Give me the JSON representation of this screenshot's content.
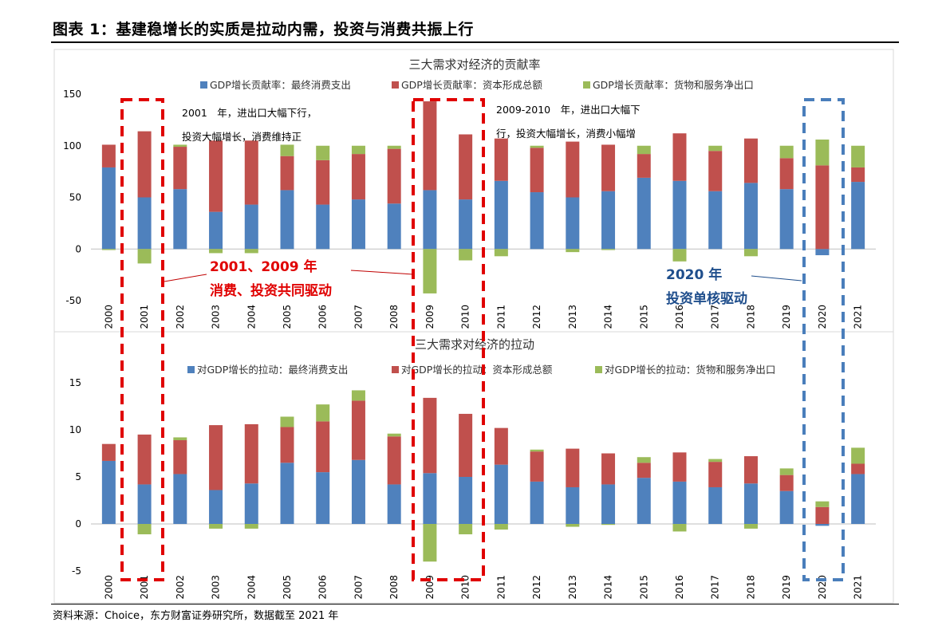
{
  "figure": {
    "title": "图表 1：基建稳增长的实质是拉动内需，投资与消费共振上行",
    "source": "资料来源：Choice，东方财富证券研究所，数据截至 2021 年"
  },
  "colors": {
    "consumption": "#4f81bd",
    "investment": "#c0504d",
    "net_exports": "#9bbb59",
    "highlight_red": "#e00000",
    "highlight_blue": "#4a7ebb"
  },
  "chart_data": [
    {
      "type": "bar",
      "stacked": true,
      "title": "三大需求对经济的贡献率",
      "categories": [
        "2000",
        "2001",
        "2002",
        "2003",
        "2004",
        "2005",
        "2006",
        "2007",
        "2008",
        "2009",
        "2010",
        "2011",
        "2012",
        "2013",
        "2014",
        "2015",
        "2016",
        "2017",
        "2018",
        "2019",
        "2020",
        "2021"
      ],
      "ylim": [
        -50,
        150
      ],
      "yticks": [
        -50,
        0,
        50,
        100,
        150
      ],
      "grid": false,
      "legend_position": "top",
      "series": [
        {
          "name": "GDP增长贡献率：最终消费支出",
          "values": [
            79,
            50,
            58,
            36,
            43,
            57,
            43,
            48,
            44,
            57,
            48,
            66,
            55,
            50,
            56,
            69,
            66,
            56,
            64,
            58,
            -6,
            65
          ]
        },
        {
          "name": "GDP增长贡献率：资本形成总额",
          "values": [
            22,
            64,
            41,
            69,
            62,
            33,
            43,
            44,
            53,
            86,
            63,
            41,
            43,
            54,
            45,
            23,
            46,
            39,
            43,
            30,
            81,
            14
          ]
        },
        {
          "name": "GDP增长贡献率：货物和服务净出口",
          "values": [
            -1,
            -14,
            2,
            -4,
            -4,
            11,
            14,
            8,
            3,
            -43,
            -11,
            -7,
            2,
            -3,
            -1,
            8,
            -12,
            5,
            -7,
            12,
            25,
            21
          ]
        }
      ],
      "annotations": [
        {
          "lines": [
            "2001　年，进出口大幅下行，",
            "投资大幅增长，消费维持正"
          ]
        },
        {
          "lines": [
            "2009-2010　年，进出口大幅下",
            "行，投资大幅增长，消费小幅增"
          ]
        }
      ]
    },
    {
      "type": "bar",
      "stacked": true,
      "title": "三大需求对经济的拉动",
      "categories": [
        "2000",
        "2001",
        "2002",
        "2003",
        "2004",
        "2005",
        "2006",
        "2007",
        "2008",
        "2009",
        "2010",
        "2011",
        "2012",
        "2013",
        "2014",
        "2015",
        "2016",
        "2017",
        "2018",
        "2019",
        "2020",
        "2021"
      ],
      "ylim": [
        -5,
        15
      ],
      "yticks": [
        -5,
        0,
        5,
        10,
        15
      ],
      "grid": false,
      "legend_position": "top",
      "series": [
        {
          "name": "对GDP增长的拉动：最终消费支出",
          "values": [
            6.7,
            4.2,
            5.3,
            3.6,
            4.3,
            6.5,
            5.5,
            6.8,
            4.2,
            5.4,
            5.0,
            6.3,
            4.5,
            3.9,
            4.2,
            4.9,
            4.5,
            3.9,
            4.3,
            3.5,
            -0.2,
            5.3
          ]
        },
        {
          "name": "对GDP增长的拉动：资本形成总额",
          "values": [
            1.8,
            5.3,
            3.6,
            6.9,
            6.3,
            3.8,
            5.4,
            6.3,
            5.1,
            8.0,
            6.7,
            3.9,
            3.2,
            4.1,
            3.3,
            1.6,
            3.1,
            2.7,
            2.9,
            1.7,
            1.8,
            1.1
          ]
        },
        {
          "name": "对GDP增长的拉动：货物和服务净出口",
          "values": [
            0,
            -1.1,
            0.3,
            -0.5,
            -0.5,
            1.1,
            1.8,
            1.1,
            0.3,
            -4.0,
            -1.1,
            -0.6,
            0.2,
            -0.3,
            -0.1,
            0.6,
            -0.8,
            0.3,
            -0.5,
            0.7,
            0.6,
            1.7
          ]
        }
      ]
    }
  ],
  "callouts": {
    "red": {
      "line1": "2001、2009 年",
      "line2": "消费、投资共同驱动"
    },
    "blue": {
      "line1": "2020 年",
      "line2": "投资单核驱动"
    }
  }
}
